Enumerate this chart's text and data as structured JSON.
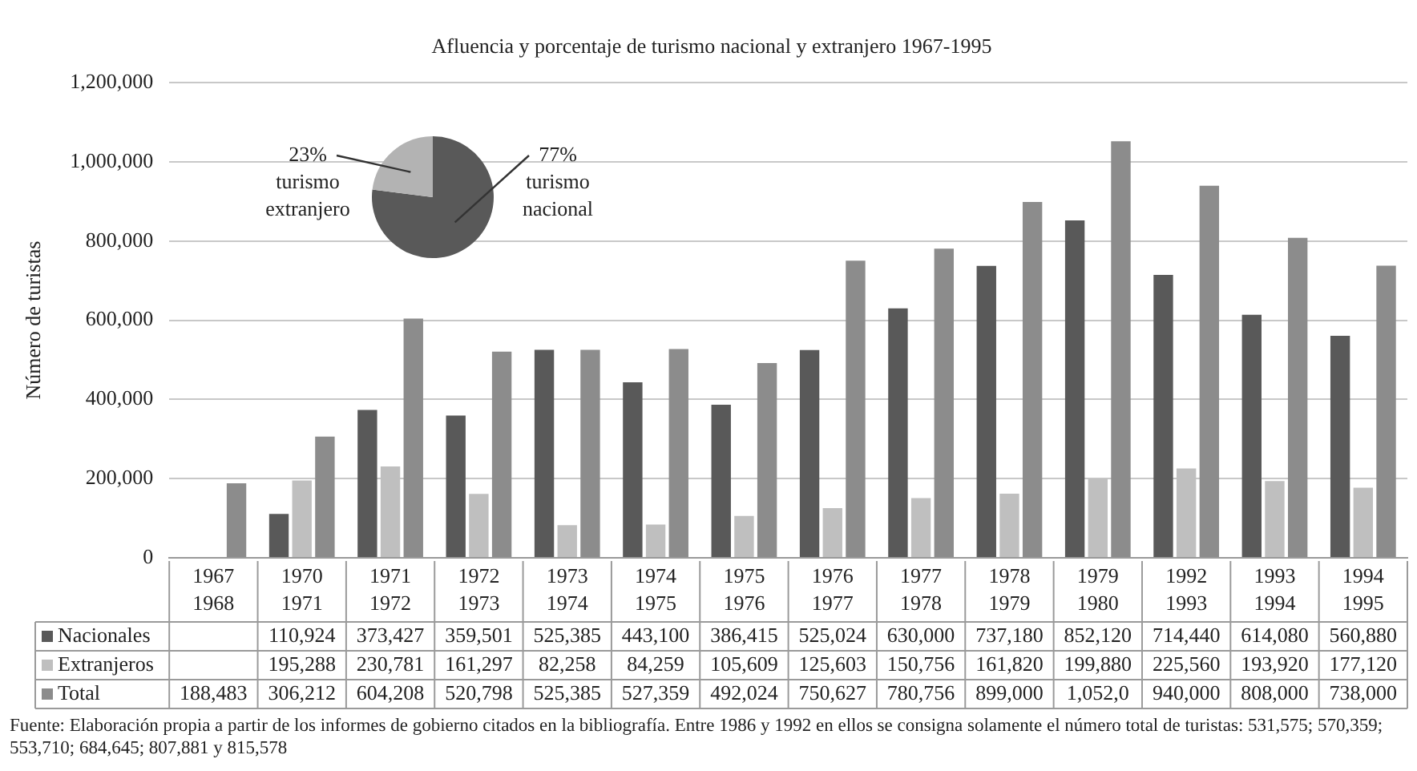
{
  "chart_data": [
    {
      "type": "bar",
      "title": "Afluencia y porcentaje de turismo nacional y extranjero 1967-1995",
      "ylabel": "Número de turistas",
      "categories": [
        "1967\n1968",
        "1970\n1971",
        "1971\n1972",
        "1972\n1973",
        "1973\n1974",
        "1974\n1975",
        "1975\n1976",
        "1976\n1977",
        "1977\n1978",
        "1978\n1979",
        "1979\n1980",
        "1992\n1993",
        "1993\n1994",
        "1994\n1995"
      ],
      "series": [
        {
          "name": "Nacionales",
          "color": "#595959",
          "values": [
            null,
            110924,
            373427,
            359501,
            525385,
            443100,
            386415,
            525024,
            630000,
            737180,
            852120,
            714440,
            614080,
            560880
          ],
          "value_labels": [
            null,
            "110,924",
            "373,427",
            "359,501",
            "525,385",
            "443,100",
            "386,415",
            "525,024",
            "630,000",
            "737,180",
            "852,120",
            "714,440",
            "614,080",
            "560,880"
          ]
        },
        {
          "name": "Extranjeros",
          "color": "#bfbfbf",
          "values": [
            null,
            195288,
            230781,
            161297,
            82258,
            84259,
            105609,
            125603,
            150756,
            161820,
            199880,
            225560,
            193920,
            177120
          ],
          "value_labels": [
            null,
            "195,288",
            "230,781",
            "161,297",
            "82,258",
            "84,259",
            "105,609",
            "125,603",
            "150,756",
            "161,820",
            "199,880",
            "225,560",
            "193,920",
            "177,120"
          ]
        },
        {
          "name": "Total",
          "color": "#8c8c8c",
          "values": [
            188483,
            306212,
            604208,
            520798,
            525385,
            527359,
            492024,
            750627,
            780756,
            899000,
            1052000,
            940000,
            808000,
            738000
          ],
          "value_labels": [
            "188,483",
            "306,212",
            "604,208",
            "520,798",
            "525,385",
            "527,359",
            "492,024",
            "750,627",
            "780,756",
            "899,000",
            "1,052,0",
            "940,000",
            "808,000",
            "738,000"
          ]
        }
      ],
      "ylim": [
        0,
        1200000
      ],
      "yticks": [
        0,
        {
          "value": 200000,
          "label": "200,000"
        },
        {
          "value": 400000,
          "label": "400,000"
        },
        {
          "value": 600000,
          "label": "600,000"
        },
        {
          "value": 800000,
          "label": "800,000"
        },
        {
          "value": 1000000,
          "label": "1,000,000"
        },
        {
          "value": 1200000,
          "label": "1,200,000"
        }
      ],
      "grid": "y",
      "legend": "bottom",
      "annotations": [
        "Fuente: Elaboración propia a partir de los informes de gobierno citados en la bibliografía. Entre 1986 y 1992 en ellos se consigna solamente el número total de turistas: 531,575; 570,359; 553,710; 684,645; 807,881 y 815,578"
      ]
    },
    {
      "type": "pie",
      "categories": [
        "turismo nacional",
        "turismo extranjero"
      ],
      "values": [
        77,
        23
      ],
      "value_labels": [
        "77%",
        "23%"
      ],
      "colors": [
        "#595959",
        "#b3b3b3"
      ]
    }
  ]
}
